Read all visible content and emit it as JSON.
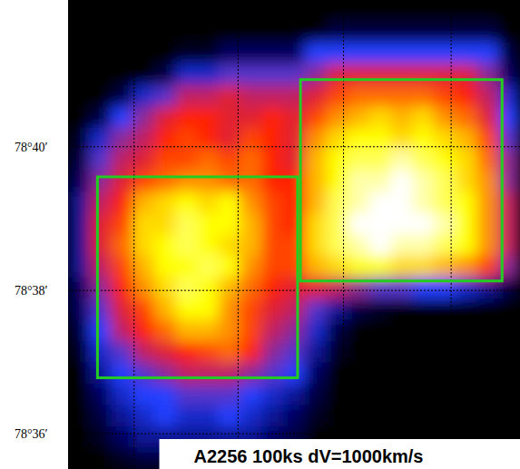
{
  "chart_data": {
    "type": "heatmap",
    "title": "A2256 100ks dV=1000km/s",
    "xlim": [
      0,
      6.3
    ],
    "ylim": [
      78.5918,
      78.7008
    ],
    "xticks": [
      0.92,
      2.37,
      3.84,
      5.34
    ],
    "yticks": [
      {
        "value": 78.6,
        "label": "78°36′"
      },
      {
        "value": 78.6333,
        "label": "78°38′"
      },
      {
        "value": 78.6667,
        "label": "78°40′"
      }
    ],
    "grid": true,
    "tick_labels": "y",
    "zlim": [
      0,
      1
    ],
    "cells": [
      [
        0,
        0,
        0,
        0,
        0,
        0,
        0,
        0,
        0,
        0,
        0,
        0,
        0,
        0,
        0,
        0,
        0,
        0,
        0,
        0,
        0
      ],
      [
        0,
        0,
        0,
        0,
        0,
        0,
        0,
        0,
        0,
        0,
        0,
        0,
        0.1,
        0.1,
        0.1,
        0.1,
        0.1,
        0.1,
        0.1,
        0.1,
        0
      ],
      [
        0,
        0,
        0,
        0,
        0,
        0.05,
        0.05,
        0.15,
        0.15,
        0.15,
        0.15,
        0.3,
        0.3,
        0.3,
        0.3,
        0.3,
        0.3,
        0.3,
        0.3,
        0.3,
        0.1
      ],
      [
        0,
        0,
        0,
        0,
        0.1,
        0.25,
        0.25,
        0.35,
        0.35,
        0.35,
        0.35,
        0.4,
        0.5,
        0.5,
        0.5,
        0.5,
        0.5,
        0.5,
        0.5,
        0.4,
        0.15
      ],
      [
        0,
        0,
        0.1,
        0.25,
        0.35,
        0.45,
        0.45,
        0.5,
        0.45,
        0.45,
        0.45,
        0.5,
        0.6,
        0.65,
        0.65,
        0.65,
        0.65,
        0.6,
        0.55,
        0.45,
        0.25
      ],
      [
        0,
        0.1,
        0.3,
        0.4,
        0.5,
        0.55,
        0.55,
        0.5,
        0.5,
        0.55,
        0.5,
        0.6,
        0.7,
        0.75,
        0.8,
        0.75,
        0.8,
        0.7,
        0.65,
        0.5,
        0.3
      ],
      [
        0.05,
        0.25,
        0.4,
        0.45,
        0.55,
        0.6,
        0.55,
        0.5,
        0.6,
        0.55,
        0.5,
        0.7,
        0.8,
        0.85,
        0.85,
        0.8,
        0.85,
        0.8,
        0.75,
        0.6,
        0.35
      ],
      [
        0.1,
        0.35,
        0.45,
        0.5,
        0.6,
        0.6,
        0.65,
        0.6,
        0.65,
        0.55,
        0.5,
        0.75,
        0.85,
        0.9,
        0.9,
        0.95,
        0.9,
        0.85,
        0.8,
        0.65,
        0.4
      ],
      [
        0.15,
        0.4,
        0.5,
        0.6,
        0.65,
        0.7,
        0.7,
        0.65,
        0.65,
        0.55,
        0.55,
        0.75,
        0.85,
        0.95,
        0.95,
        1,
        0.95,
        0.9,
        0.8,
        0.7,
        0.4
      ],
      [
        0.2,
        0.45,
        0.55,
        0.75,
        0.8,
        0.85,
        0.8,
        0.85,
        0.7,
        0.6,
        0.55,
        0.75,
        0.9,
        0.95,
        1,
        1,
        0.95,
        0.9,
        0.85,
        0.7,
        0.45
      ],
      [
        0.2,
        0.5,
        0.6,
        0.8,
        0.8,
        0.9,
        0.85,
        0.85,
        0.75,
        0.6,
        0.55,
        0.8,
        0.9,
        1,
        1,
        1,
        1,
        0.95,
        0.85,
        0.7,
        0.45
      ],
      [
        0.2,
        0.5,
        0.65,
        0.8,
        0.85,
        0.9,
        0.85,
        0.8,
        0.75,
        0.6,
        0.6,
        0.8,
        0.9,
        0.95,
        1,
        0.95,
        0.95,
        0.9,
        0.85,
        0.7,
        0.45
      ],
      [
        0.2,
        0.45,
        0.6,
        0.75,
        0.85,
        0.85,
        0.9,
        0.85,
        0.7,
        0.6,
        0.6,
        0.75,
        0.8,
        0.85,
        0.85,
        0.8,
        0.8,
        0.75,
        0.7,
        0.6,
        0.4
      ],
      [
        0.15,
        0.4,
        0.55,
        0.7,
        0.8,
        0.9,
        0.85,
        0.75,
        0.65,
        0.55,
        0.5,
        0.5,
        0.45,
        0.4,
        0.35,
        0.35,
        0.3,
        0.3,
        0.25,
        0.2,
        0.1
      ],
      [
        0.15,
        0.35,
        0.5,
        0.6,
        0.75,
        0.85,
        0.85,
        0.7,
        0.6,
        0.5,
        0.45,
        0.35,
        0.2,
        0.1,
        0.05,
        0,
        0,
        0,
        0,
        0,
        0
      ],
      [
        0.1,
        0.3,
        0.45,
        0.55,
        0.65,
        0.75,
        0.75,
        0.7,
        0.6,
        0.45,
        0.4,
        0.25,
        0.1,
        0,
        0,
        0,
        0,
        0,
        0,
        0,
        0
      ],
      [
        0.05,
        0.25,
        0.35,
        0.45,
        0.5,
        0.55,
        0.6,
        0.65,
        0.55,
        0.4,
        0.35,
        0.2,
        0.05,
        0,
        0,
        0,
        0,
        0,
        0,
        0,
        0
      ],
      [
        0,
        0.2,
        0.3,
        0.35,
        0.4,
        0.45,
        0.45,
        0.45,
        0.4,
        0.35,
        0.3,
        0.15,
        0,
        0,
        0,
        0,
        0,
        0,
        0,
        0,
        0
      ],
      [
        0,
        0.15,
        0.25,
        0.3,
        0.3,
        0.35,
        0.35,
        0.35,
        0.3,
        0.25,
        0.2,
        0.1,
        0,
        0,
        0,
        0,
        0,
        0,
        0,
        0,
        0
      ],
      [
        0,
        0.1,
        0.2,
        0.25,
        0.3,
        0.25,
        0.25,
        0.3,
        0.25,
        0.2,
        0.15,
        0.05,
        0,
        0,
        0,
        0,
        0,
        0,
        0,
        0,
        0
      ],
      [
        0,
        0.05,
        0.15,
        0.2,
        0.2,
        0.2,
        0.2,
        0.2,
        0.2,
        0.15,
        0.1,
        0,
        0,
        0,
        0,
        0,
        0,
        0,
        0,
        0,
        0
      ],
      [
        0,
        0,
        0.05,
        0.1,
        0.1,
        0.1,
        0.1,
        0.1,
        0.1,
        0.1,
        0,
        0,
        0,
        0,
        0,
        0,
        0,
        0,
        0,
        0,
        0
      ]
    ],
    "regions": [
      {
        "xlim": [
          0.41,
          3.2
        ],
        "ylim": [
          78.613,
          78.6597
        ],
        "color": "#22cc22"
      },
      {
        "xlim": [
          3.24,
          6.05
        ],
        "ylim": [
          78.6355,
          78.6823
        ],
        "color": "#22cc22"
      }
    ]
  }
}
